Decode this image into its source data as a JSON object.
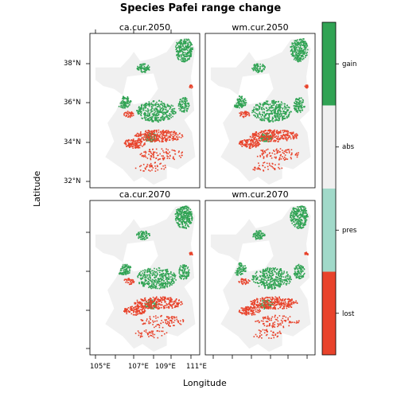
{
  "title": "Species Pafei range change",
  "panels": [
    {
      "label": "ca.cur.2050"
    },
    {
      "label": "wm.cur.2050"
    },
    {
      "label": "ca.cur.2070"
    },
    {
      "label": "wm.cur.2070"
    }
  ],
  "axes": {
    "xlabel": "Longitude",
    "ylabel": "Latitude",
    "xticks": [
      "105°E",
      "107°E",
      "109°E",
      "111°E"
    ],
    "yticks": [
      "38°N",
      "36°N",
      "34°N",
      "32°N"
    ]
  },
  "legend": {
    "items": [
      {
        "label": "gain",
        "color": "#31A354"
      },
      {
        "label": "abs",
        "color": "#F0F0F0"
      },
      {
        "label": "pres",
        "color": "#A1D9C9"
      },
      {
        "label": "lost",
        "color": "#E8432B"
      }
    ]
  },
  "colors": {
    "gain": "#31A354",
    "abs": "#F0F0F0",
    "pres": "#A1D9C9",
    "lost": "#E8432B",
    "frame": "#000000"
  }
}
